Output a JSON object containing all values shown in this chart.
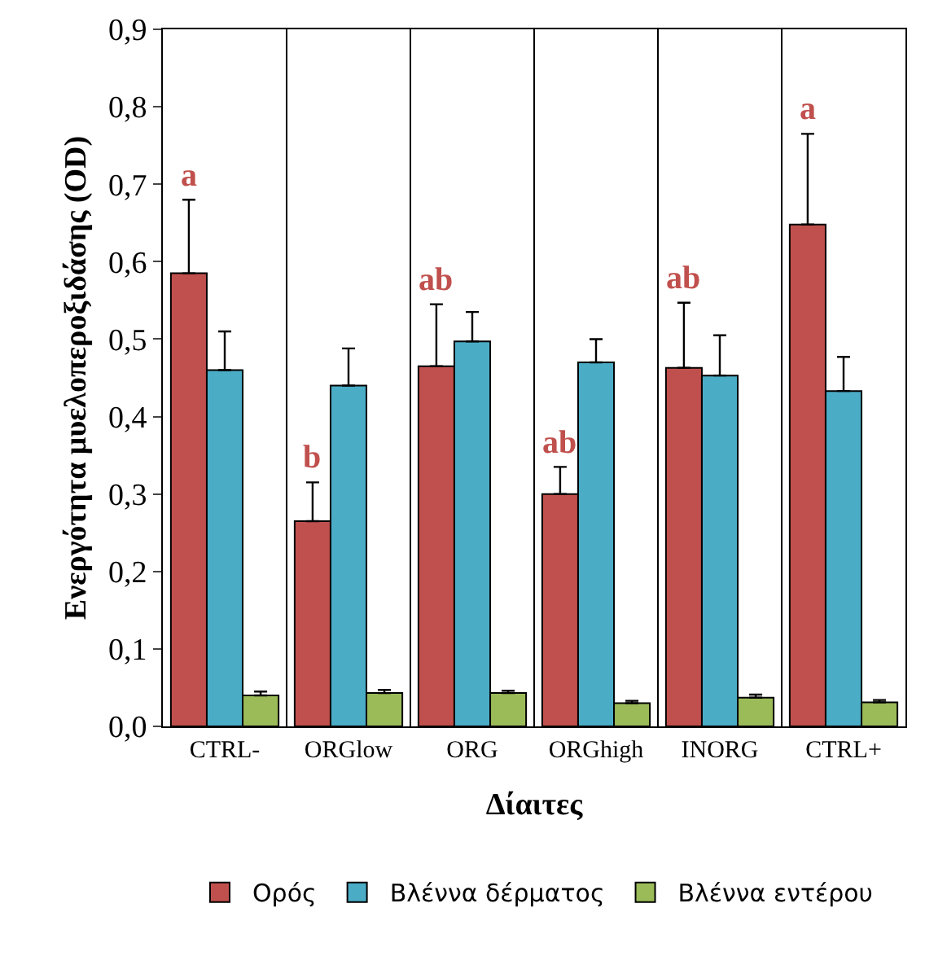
{
  "chart_data": {
    "type": "bar",
    "xlabel": "Δίαιτες",
    "ylabel": "Ενεργότητα μυελοπεροξιδάσης (OD)",
    "categories": [
      "CTRL-",
      "ORGlow",
      "ORG",
      "ORGhigh",
      "INORG",
      "CTRL+"
    ],
    "series": [
      {
        "name": "Ορός",
        "color": "#c0504d",
        "values": [
          0.585,
          0.265,
          0.465,
          0.3,
          0.463,
          0.648
        ],
        "errors": [
          [
            0.585,
            0.68
          ],
          [
            0.265,
            0.315
          ],
          [
            0.465,
            0.545
          ],
          [
            0.3,
            0.335
          ],
          [
            0.463,
            0.547
          ],
          [
            0.648,
            0.765
          ]
        ]
      },
      {
        "name": "Βλέννα δέρματος",
        "color": "#4bacc6",
        "values": [
          0.46,
          0.44,
          0.497,
          0.47,
          0.453,
          0.433
        ],
        "errors": [
          [
            0.46,
            0.51
          ],
          [
            0.44,
            0.488
          ],
          [
            0.497,
            0.535
          ],
          [
            0.47,
            0.5
          ],
          [
            0.453,
            0.505
          ],
          [
            0.433,
            0.477
          ]
        ]
      },
      {
        "name": "Βλέννα εντέρου",
        "color": "#9bbb59",
        "values": [
          0.04,
          0.043,
          0.043,
          0.03,
          0.037,
          0.031
        ],
        "errors": [
          [
            0.04,
            0.045
          ],
          [
            0.043,
            0.047
          ],
          [
            0.043,
            0.046
          ],
          [
            0.03,
            0.033
          ],
          [
            0.037,
            0.041
          ],
          [
            0.031,
            0.034
          ]
        ]
      }
    ],
    "annotations": [
      "a",
      "b",
      "ab",
      "ab",
      "ab",
      "a"
    ],
    "ylim": [
      0,
      0.9
    ],
    "yticks": [
      {
        "value": 0,
        "label": "0,0"
      },
      {
        "value": 0.1,
        "label": "0,1"
      },
      {
        "value": 0.2,
        "label": "0,2"
      },
      {
        "value": 0.3,
        "label": "0,3"
      },
      {
        "value": 0.4,
        "label": "0,4"
      },
      {
        "value": 0.5,
        "label": "0,5"
      },
      {
        "value": 0.6,
        "label": "0,6"
      },
      {
        "value": 0.7,
        "label": "0,7"
      },
      {
        "value": 0.8,
        "label": "0,8"
      },
      {
        "value": 0.9,
        "label": "0,9"
      }
    ],
    "grid": "x",
    "legend": "bottom"
  }
}
